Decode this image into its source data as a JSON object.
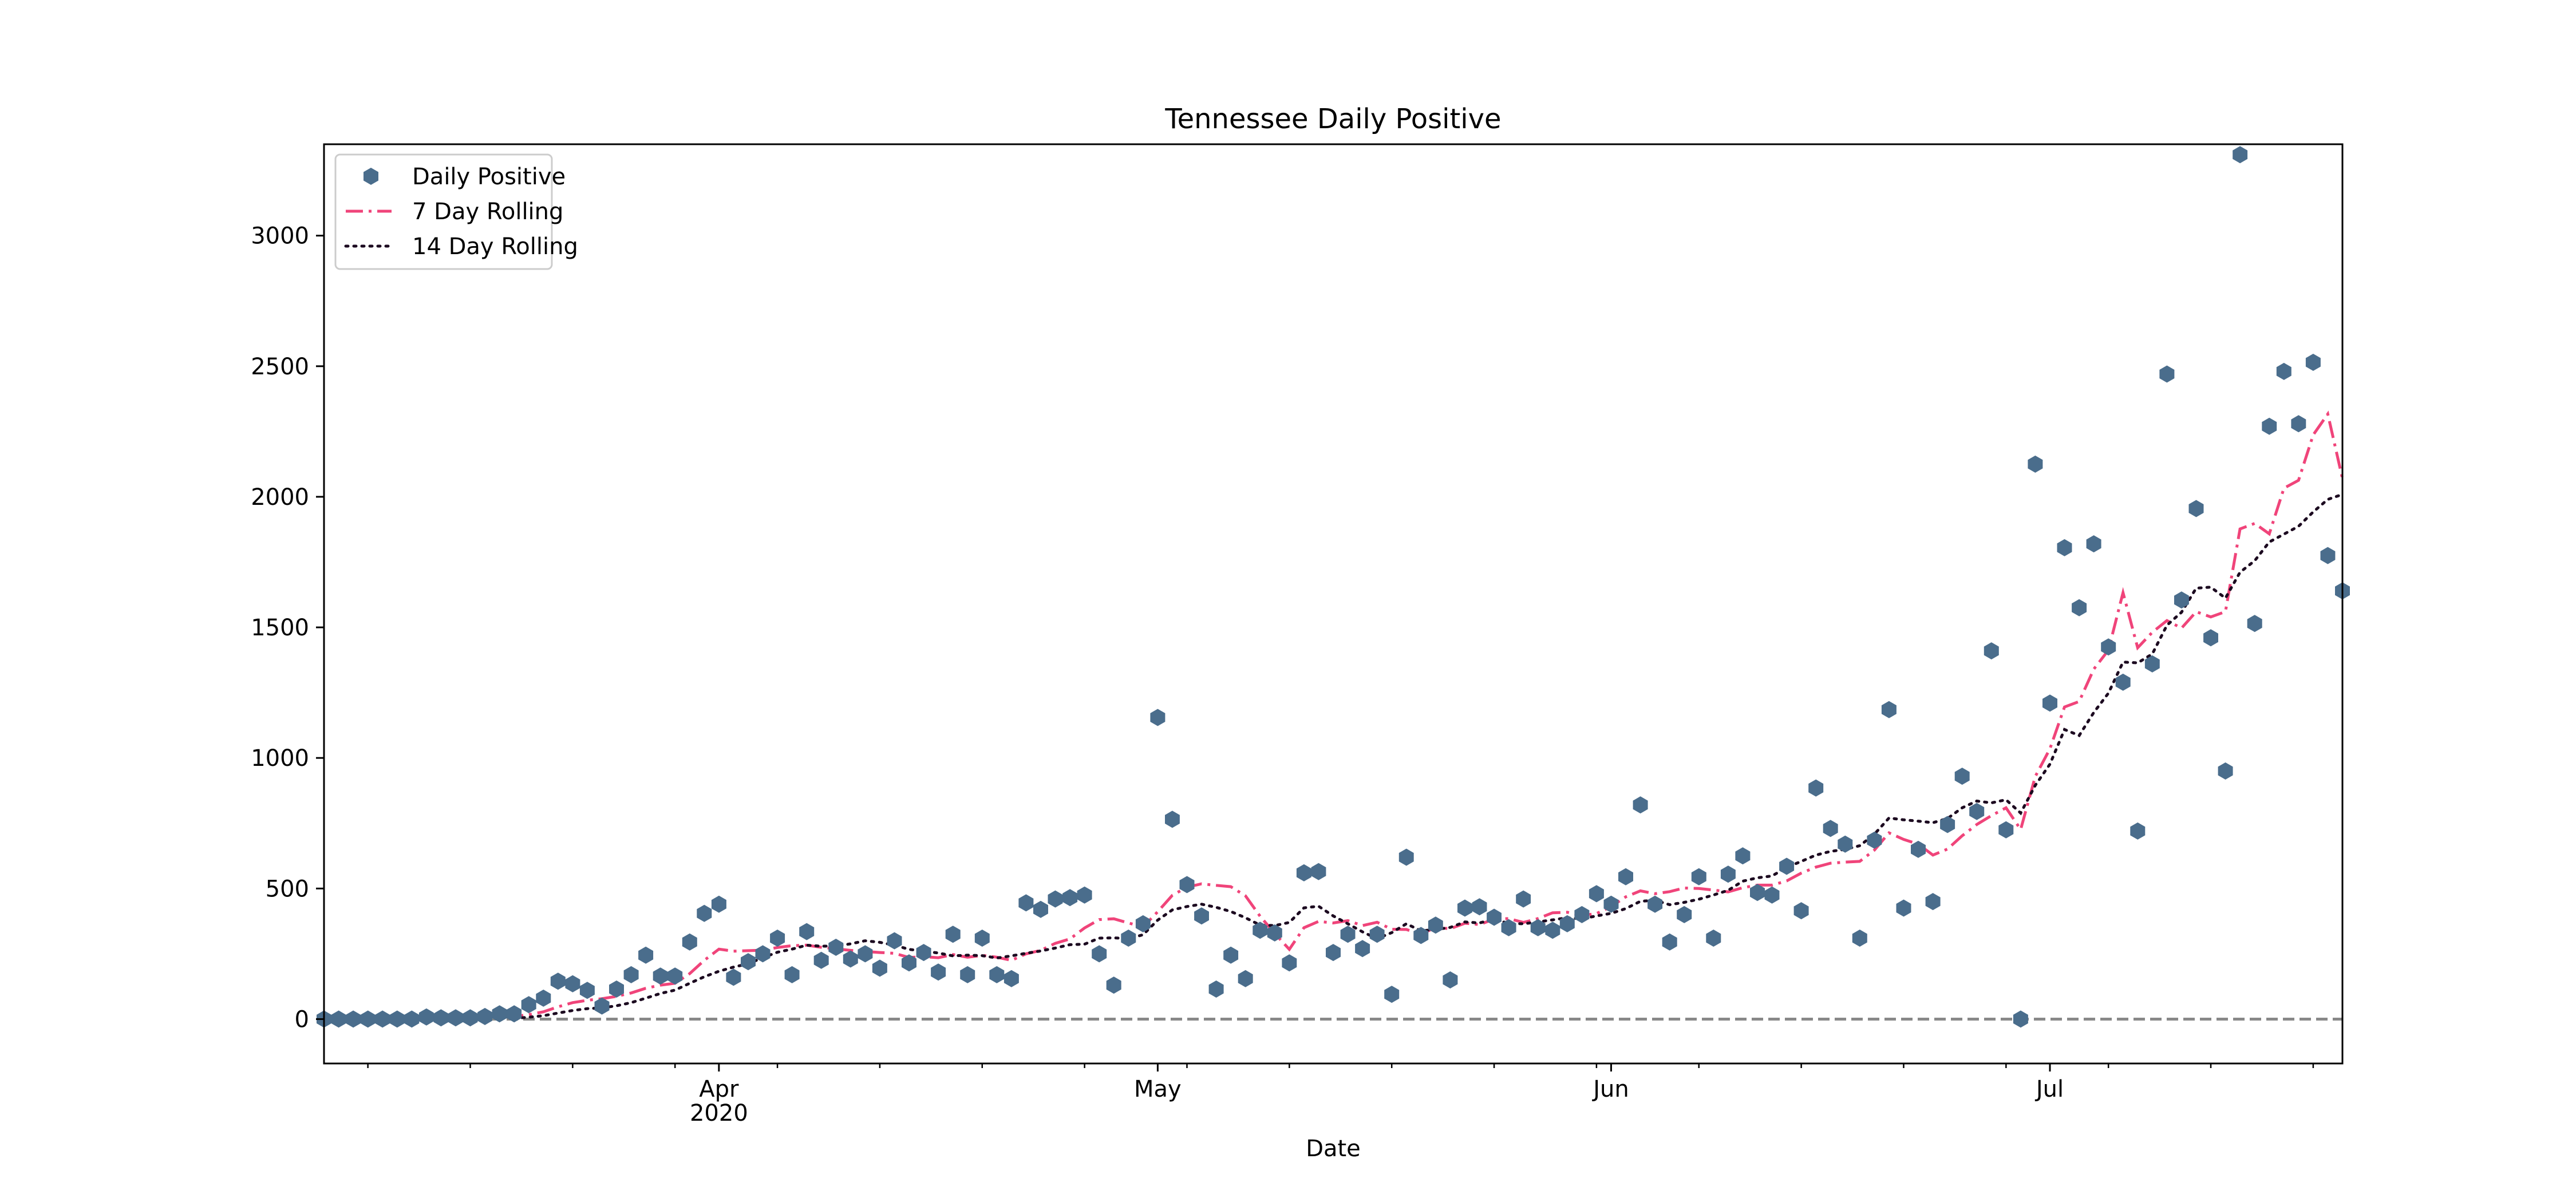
{
  "chart_data": {
    "type": "scatter",
    "title": "Tennessee Daily Positive",
    "xlabel": "Date",
    "ylabel": "",
    "x_start": "2020-03-05",
    "xlim": [
      "2020-03-05",
      "2020-07-21"
    ],
    "ylim": [
      -170,
      3350
    ],
    "yticks": [
      0,
      500,
      1000,
      1500,
      2000,
      2500,
      3000
    ],
    "ytick_labels": [
      "0",
      "500",
      "1000",
      "1500",
      "2000",
      "2500",
      "3000"
    ],
    "xticks": [
      {
        "date": "2020-04-01",
        "label": "Apr",
        "sublabel": "2020"
      },
      {
        "date": "2020-05-01",
        "label": "May",
        "sublabel": ""
      },
      {
        "date": "2020-06-01",
        "label": "Jun",
        "sublabel": ""
      },
      {
        "date": "2020-07-01",
        "label": "Jul",
        "sublabel": ""
      }
    ],
    "grid": false,
    "legend_position": "upper left",
    "baseline": {
      "y": 0,
      "style": "dashed",
      "color": "#888888"
    },
    "series": [
      {
        "name": "Daily Positive",
        "type": "scatter",
        "marker": "hexagon",
        "color": "#4a6d8c",
        "values": [
          0,
          0,
          0,
          0,
          0,
          0,
          0,
          8,
          5,
          5,
          5,
          10,
          20,
          20,
          55,
          80,
          145,
          135,
          110,
          50,
          115,
          170,
          245,
          165,
          165,
          295,
          405,
          440,
          160,
          220,
          250,
          310,
          170,
          335,
          225,
          275,
          230,
          250,
          195,
          300,
          215,
          255,
          180,
          325,
          170,
          310,
          170,
          155,
          445,
          420,
          460,
          465,
          475,
          250,
          130,
          310,
          365,
          1155,
          765,
          515,
          395,
          115,
          245,
          155,
          340,
          330,
          215,
          560,
          565,
          255,
          325,
          270,
          325,
          95,
          620,
          320,
          360,
          150,
          425,
          430,
          390,
          350,
          460,
          350,
          340,
          365,
          400,
          480,
          440,
          545,
          820,
          440,
          295,
          400,
          545,
          310,
          555,
          625,
          485,
          475,
          585,
          415,
          885,
          730,
          670,
          310,
          685,
          1185,
          425,
          650,
          450,
          745,
          930,
          795,
          1410,
          725,
          0,
          2125,
          1210,
          1805,
          1575,
          1820,
          1425,
          1290,
          720,
          1360,
          2470,
          1605,
          1955,
          1460,
          950,
          3310,
          1515,
          2270,
          2480,
          2280,
          2515,
          1775,
          1640
        ]
      },
      {
        "name": "7 Day Rolling",
        "type": "line",
        "style": "dash-dot",
        "color": "#f0447a",
        "values": [
          null,
          null,
          null,
          null,
          null,
          null,
          0,
          1,
          2,
          3,
          4,
          5,
          8,
          10,
          17,
          28,
          47,
          63,
          72,
          78,
          87,
          100,
          118,
          130,
          137,
          174,
          225,
          268,
          260,
          262,
          264,
          274,
          281,
          283,
          275,
          269,
          263,
          259,
          255,
          252,
          236,
          239,
          235,
          247,
          237,
          244,
          237,
          225,
          250,
          263,
          290,
          307,
          349,
          381,
          384,
          368,
          353,
          411,
          474,
          505,
          518,
          512,
          507,
          472,
          394,
          328,
          267,
          350,
          374,
          368,
          377,
          358,
          371,
          344,
          343,
          325,
          351,
          346,
          367,
          362,
          383,
          385,
          370,
          385,
          407,
          409,
          397,
          404,
          431,
          468,
          491,
          480,
          488,
          502,
          500,
          494,
          487,
          503,
          513,
          513,
          529,
          559,
          582,
          597,
          601,
          604,
          647,
          713,
          688,
          670,
          628,
          651,
          702,
          745,
          779,
          809,
          726,
          929,
          1035,
          1195,
          1216,
          1340,
          1413,
          1633,
          1422,
          1481,
          1526,
          1497,
          1560,
          1540,
          1560,
          1877,
          1898,
          1858,
          2033,
          2063,
          2237,
          2317,
          2070
        ]
      },
      {
        "name": "14 Day Rolling",
        "type": "line",
        "style": "dotted",
        "color": "#1c0a20",
        "values": [
          null,
          null,
          null,
          null,
          null,
          null,
          null,
          null,
          null,
          null,
          null,
          null,
          null,
          3,
          7,
          13,
          23,
          33,
          40,
          43,
          51,
          63,
          80,
          98,
          111,
          137,
          162,
          183,
          199,
          212,
          235,
          256,
          268,
          283,
          279,
          280,
          288,
          300,
          294,
          283,
          267,
          260,
          253,
          242,
          245,
          243,
          234,
          242,
          252,
          261,
          272,
          285,
          287,
          310,
          311,
          308,
          323,
          379,
          418,
          431,
          440,
          428,
          412,
          388,
          360,
          358,
          370,
          426,
          432,
          395,
          365,
          334,
          308,
          331,
          365,
          338,
          343,
          351,
          372,
          368,
          383,
          366,
          365,
          372,
          380,
          388,
          384,
          395,
          405,
          423,
          451,
          455,
          438,
          447,
          459,
          475,
          493,
          528,
          541,
          548,
          581,
          604,
          628,
          642,
          650,
          664,
          708,
          770,
          763,
          758,
          752,
          768,
          809,
          835,
          828,
          840,
          789,
          895,
          976,
          1109,
          1086,
          1174,
          1248,
          1367,
          1364,
          1398,
          1508,
          1558,
          1650,
          1654,
          1612,
          1711,
          1755,
          1827,
          1857,
          1887,
          1942,
          1990,
          2009
        ]
      }
    ]
  }
}
